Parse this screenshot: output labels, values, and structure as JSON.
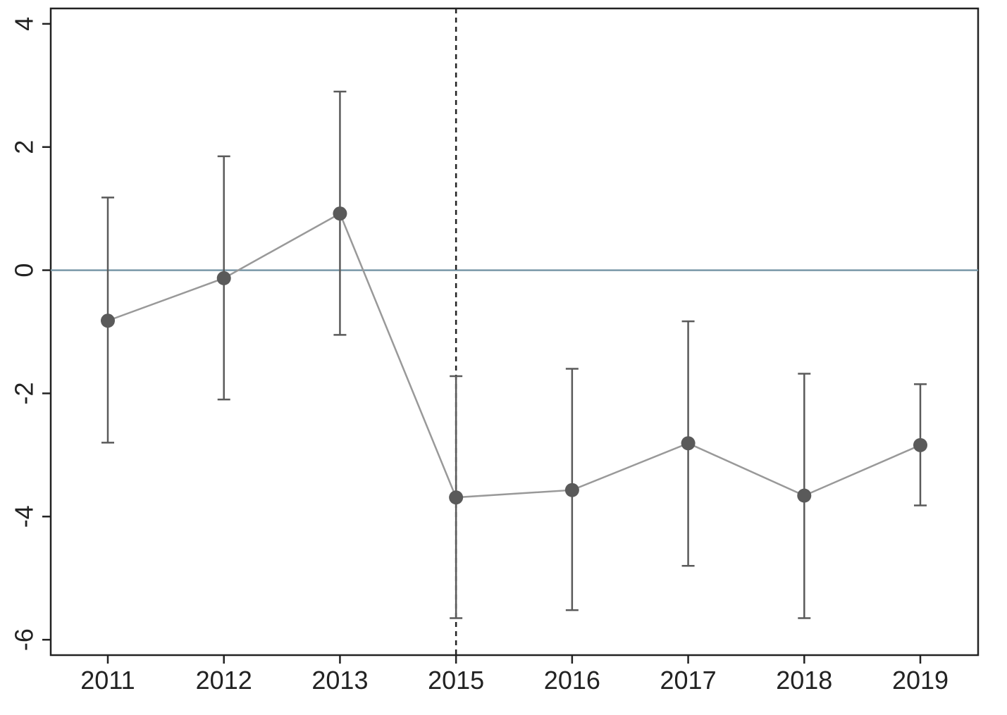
{
  "chart_data": {
    "type": "scatter",
    "subtype": "coefficient-plot-with-confidence-intervals",
    "title": "",
    "xlabel": "",
    "ylabel": "",
    "categories": [
      "2011",
      "2012",
      "2013",
      "2015",
      "2016",
      "2017",
      "2018",
      "2019"
    ],
    "series": [
      {
        "values": [
          -0.82,
          -0.13,
          0.92,
          -3.69,
          -3.57,
          -2.81,
          -3.66,
          -2.84
        ],
        "ci_lower": [
          -2.8,
          -2.1,
          -1.05,
          -5.65,
          -5.52,
          -4.8,
          -5.65,
          -3.82
        ],
        "ci_upper": [
          1.18,
          1.85,
          2.9,
          -1.72,
          -1.6,
          -0.83,
          -1.68,
          -1.85
        ]
      }
    ],
    "ylim": [
      -6.25,
      4.25
    ],
    "yticks": [
      4,
      2,
      0,
      -2,
      -4,
      -6
    ],
    "reference_hline": 0,
    "reference_vline_category": "2015",
    "grid": false,
    "legend": "none",
    "colors": {
      "marker": "#5a5a5a",
      "connector": "#999999",
      "ci": "#5a5a5a",
      "zero_line": "#7a98a8",
      "vline": "#222222",
      "axis": "#222222"
    }
  }
}
